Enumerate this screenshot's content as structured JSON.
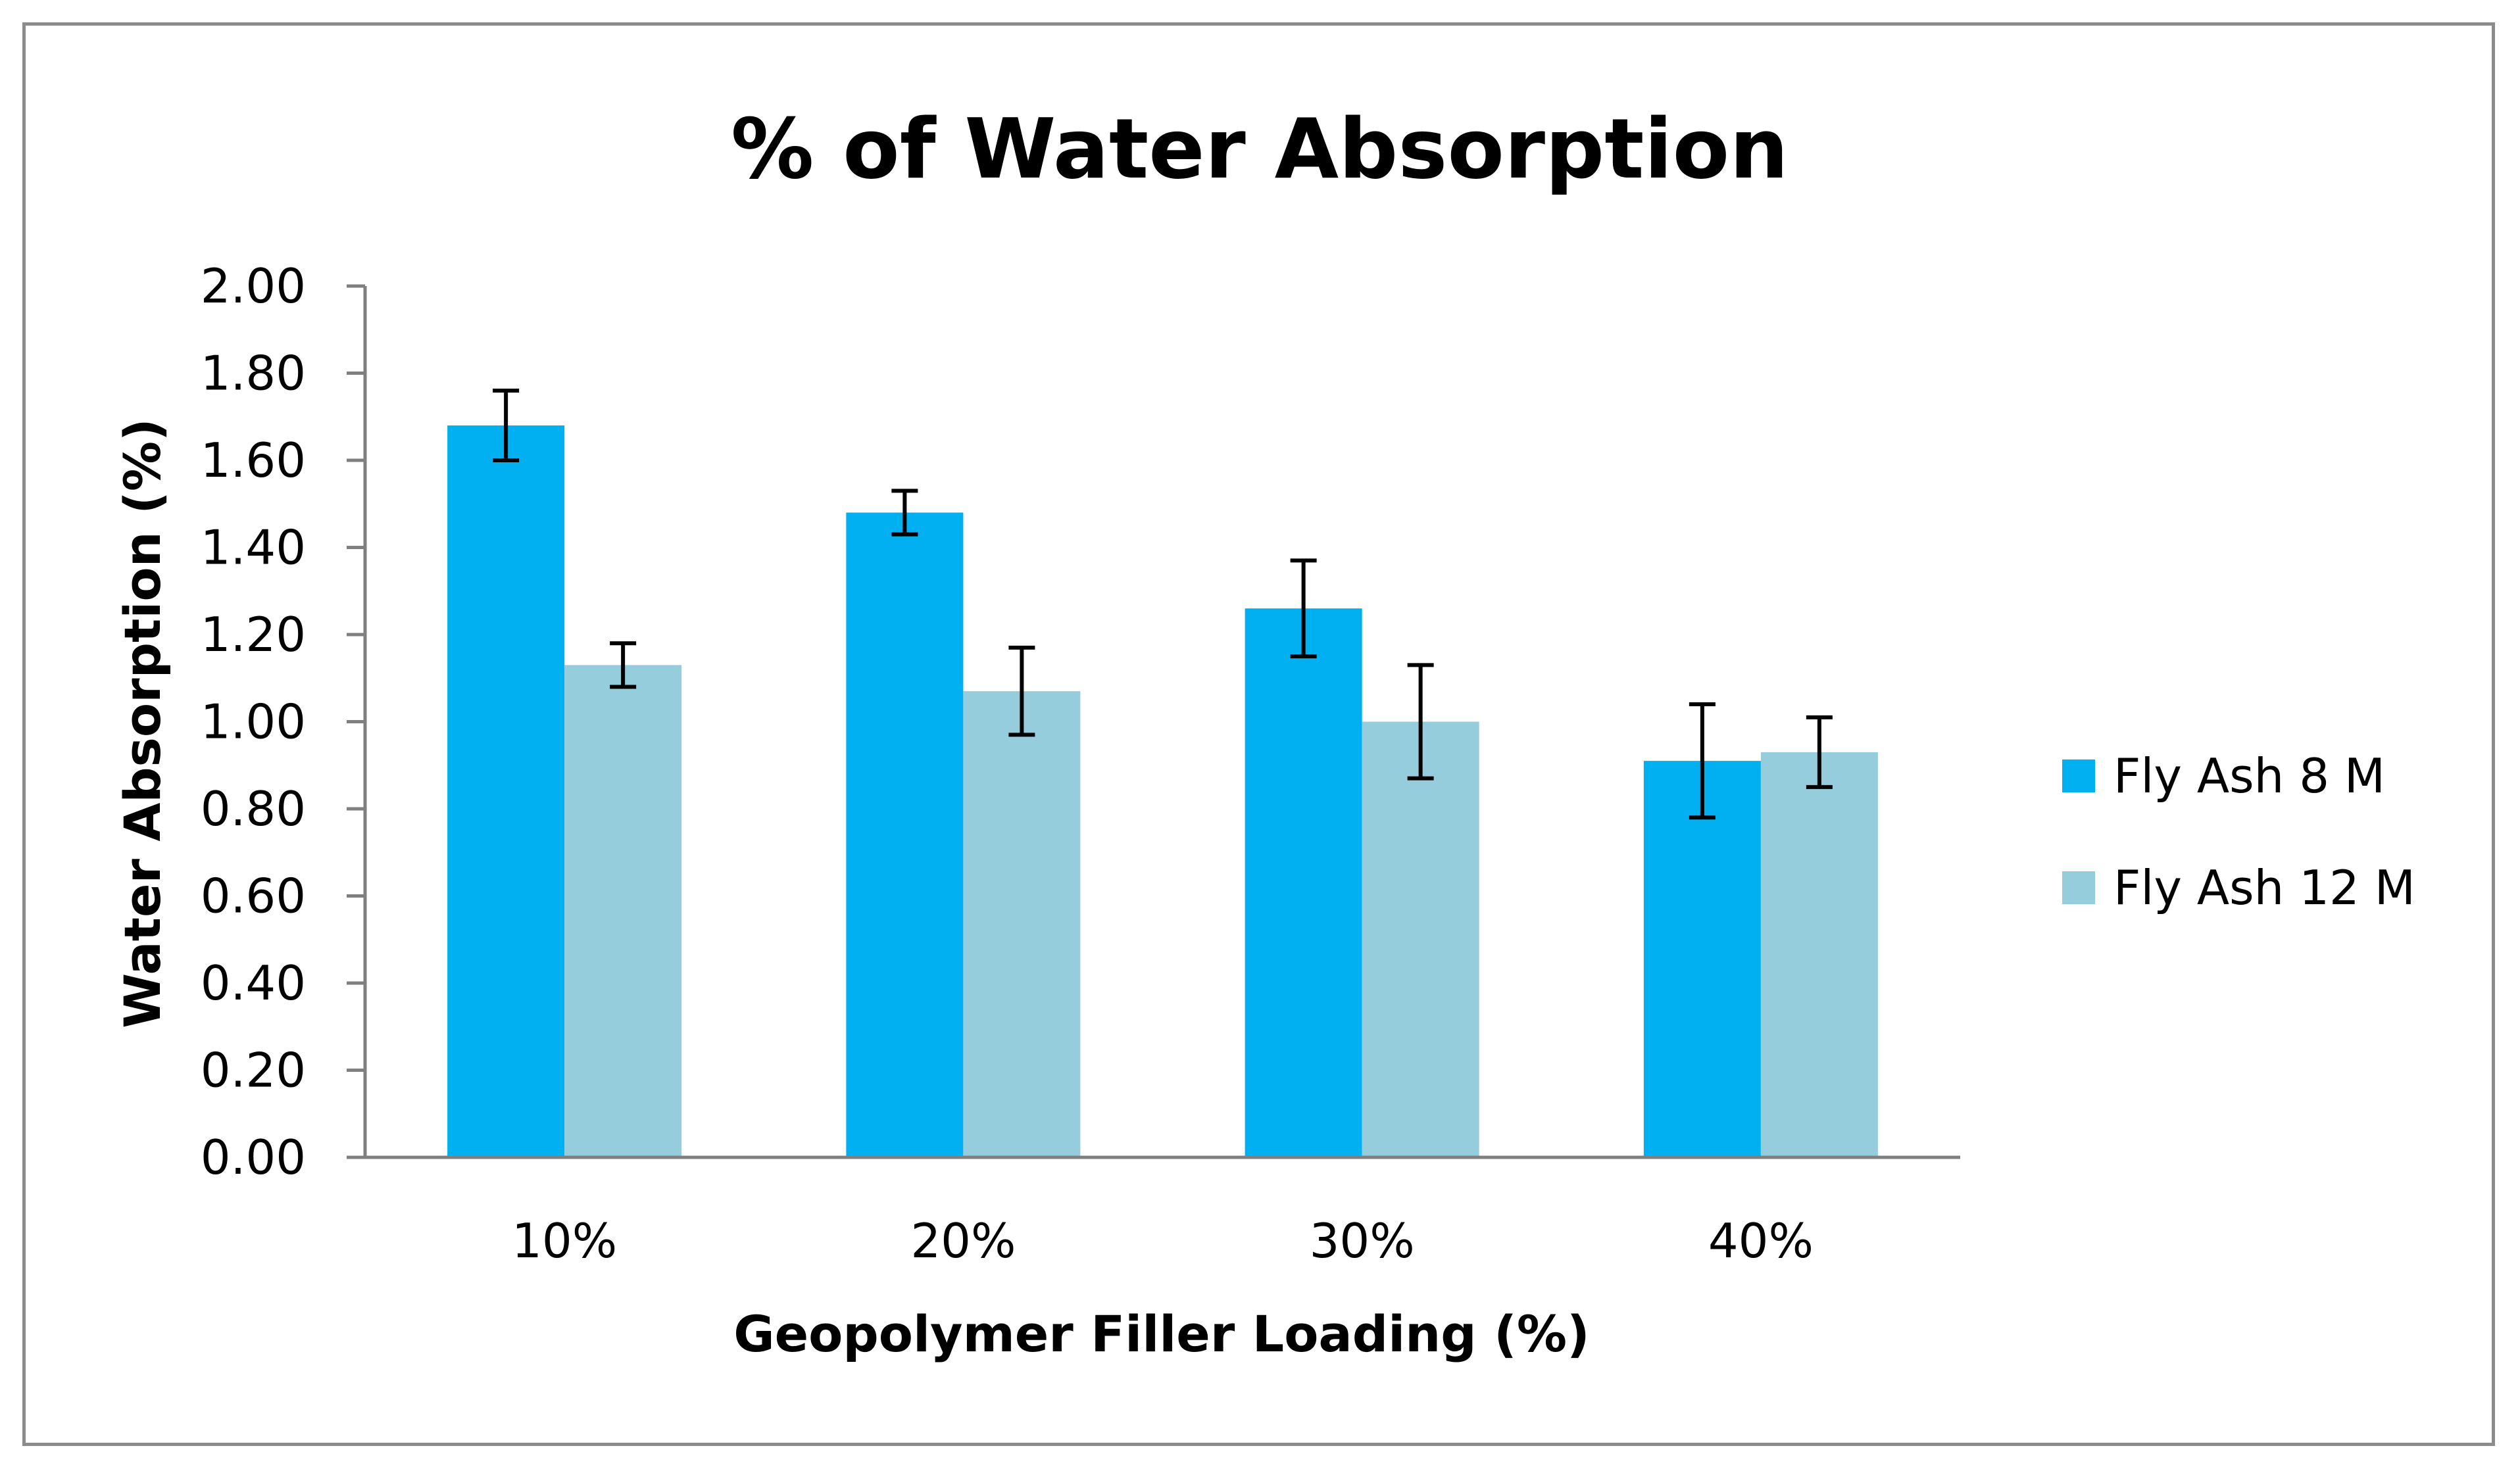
{
  "chart_data": {
    "type": "bar",
    "title": "% of Water Absorption",
    "xlabel": "Geopolymer Filler Loading (%)",
    "ylabel": "Water Absorption (%)",
    "categories": [
      "10%",
      "20%",
      "30%",
      "40%"
    ],
    "ylim": [
      0,
      2
    ],
    "yticks": [
      "0.00",
      "0.20",
      "0.40",
      "0.60",
      "0.80",
      "1.00",
      "1.20",
      "1.40",
      "1.60",
      "1.80",
      "2.00"
    ],
    "grid": false,
    "legend_position": "right",
    "series": [
      {
        "name": "Fly Ash 8 M",
        "color": "#00b0f0",
        "values": [
          1.68,
          1.48,
          1.26,
          0.91
        ],
        "errors": [
          0.08,
          0.05,
          0.11,
          0.13
        ]
      },
      {
        "name": "Fly Ash 12 M",
        "color": "#96cddc",
        "values": [
          1.13,
          1.07,
          1.0,
          0.93
        ],
        "errors": [
          0.05,
          0.1,
          0.13,
          0.08
        ]
      }
    ]
  }
}
